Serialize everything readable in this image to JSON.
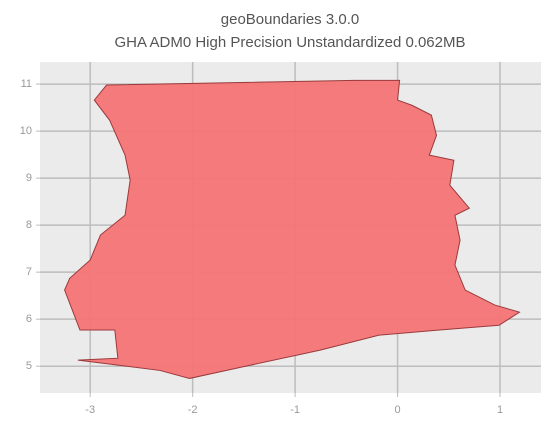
{
  "chart_data": {
    "type": "map",
    "title": "geoBoundaries 3.0.0",
    "subtitle": "GHA ADM0 High Precision Unstandardized 0.062MB",
    "x": [
      -2.84,
      -0.42,
      0.02,
      0.0,
      0.14,
      0.33,
      0.38,
      0.31,
      0.55,
      0.51,
      0.7,
      0.56,
      0.61,
      0.56,
      0.66,
      0.95,
      1.19,
      0.99,
      0.41,
      -0.18,
      -0.76,
      -1.44,
      -2.03,
      -2.32,
      -3.12,
      -2.73,
      -2.76,
      -3.1,
      -3.25,
      -3.2,
      -3.0,
      -2.9,
      -2.66,
      -2.61,
      -2.66,
      -2.81,
      -2.96
    ],
    "values": [
      10.98,
      11.08,
      11.08,
      10.66,
      10.55,
      10.34,
      9.91,
      9.49,
      9.38,
      8.85,
      8.36,
      8.21,
      7.68,
      7.15,
      6.62,
      6.3,
      6.15,
      5.87,
      5.77,
      5.66,
      5.34,
      5.02,
      4.74,
      4.91,
      5.13,
      5.17,
      5.77,
      5.77,
      6.62,
      6.87,
      7.26,
      7.79,
      8.21,
      8.96,
      9.49,
      10.23,
      10.66
    ],
    "color": "#f47476",
    "edgecolor": "#9a3a3c",
    "xlim": [
      -3.49,
      1.4
    ],
    "xticks": [
      -3,
      -2,
      -1,
      0,
      1
    ],
    "ylim": [
      4.43,
      11.47
    ],
    "yticks": [
      5,
      6,
      7,
      8,
      9,
      10,
      11
    ],
    "grid": true
  }
}
